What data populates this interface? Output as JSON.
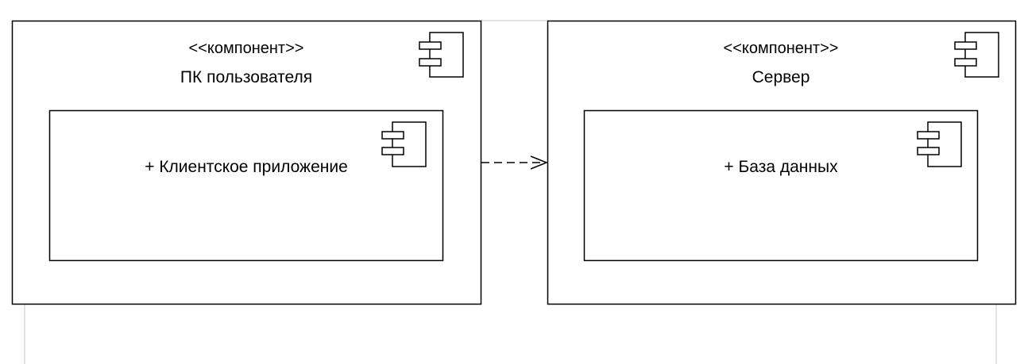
{
  "diagram": {
    "type": "uml-component-diagram",
    "components": [
      {
        "stereotype": "<<компонент>>",
        "name": "ПК пользователя",
        "inner": {
          "label": "+ Клиентское приложение"
        }
      },
      {
        "stereotype": "<<компонент>>",
        "name": "Сервер",
        "inner": {
          "label": "+ База данных"
        }
      }
    ],
    "connector": {
      "style": "dashed",
      "arrowhead": "open",
      "from": "ПК пользователя",
      "to": "Сервер"
    },
    "colors": {
      "stroke": "#000000",
      "background": "#ffffff",
      "guide": "#c8c8c8"
    }
  }
}
